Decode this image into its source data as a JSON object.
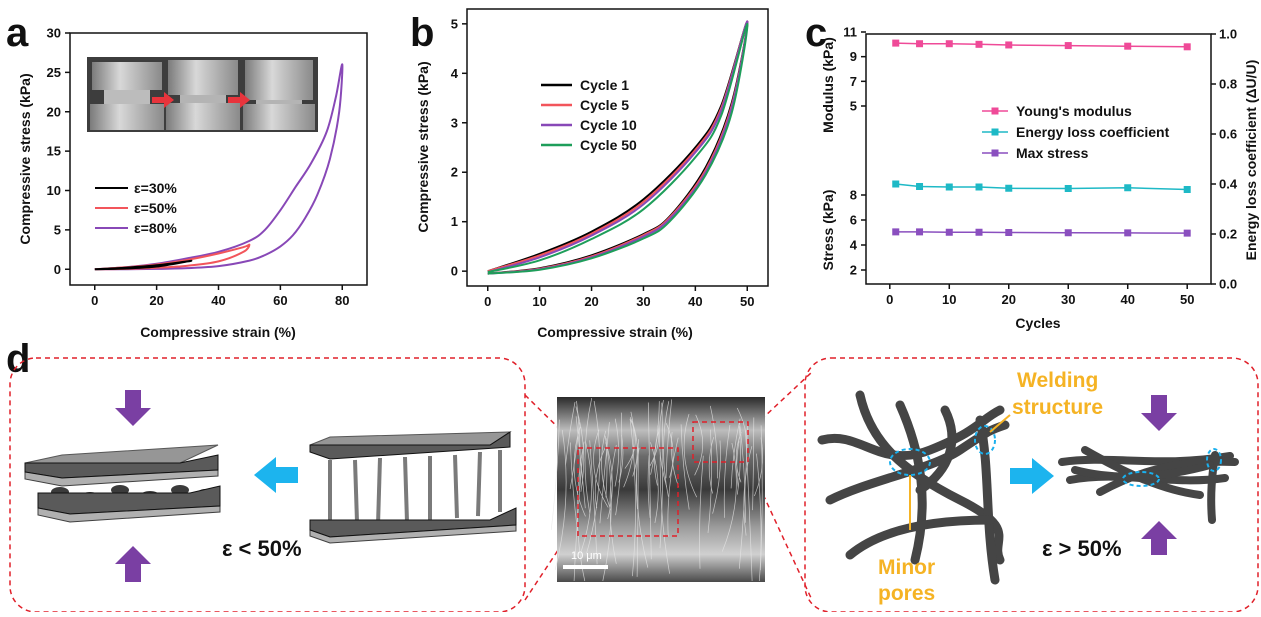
{
  "panels": {
    "a": "a",
    "b": "b",
    "c": "c",
    "d": "d"
  },
  "colors": {
    "black": "#000000",
    "red": "#f2555b",
    "purple": "#8848b7",
    "green": "#1e9e5a",
    "pink": "#ef4a98",
    "cyan": "#1eb9c6",
    "violet": "#8a4fbf",
    "arrow_purple": "#7a3fa3",
    "arrow_cyan": "#1cb4ee",
    "dashed_red": "#e0202a",
    "yellow": "#f5b324"
  },
  "chart_data": [
    {
      "panel": "a",
      "type": "line",
      "xlabel": "Compressive strain (%)",
      "ylabel": "Compressive stress (kPa)",
      "xlim": [
        -8,
        88
      ],
      "ylim": [
        -2,
        30
      ],
      "xticks": [
        0,
        20,
        40,
        60,
        80
      ],
      "yticks": [
        0,
        5,
        10,
        15,
        20,
        25,
        30
      ],
      "legend_position": "middle-left",
      "series": [
        {
          "name": "ε=30%",
          "color": "#000000",
          "x": [
            0,
            10,
            20,
            30,
            30,
            20,
            10,
            0
          ],
          "y": [
            0,
            0.2,
            0.5,
            1.0,
            1.0,
            0.35,
            0.1,
            0
          ]
        },
        {
          "name": "ε=50%",
          "color": "#f2555b",
          "x": [
            0,
            10,
            20,
            30,
            40,
            48,
            50,
            48,
            40,
            30,
            20,
            10,
            0
          ],
          "y": [
            0,
            0.25,
            0.6,
            1.2,
            2.0,
            2.8,
            3.1,
            2.2,
            1.0,
            0.45,
            0.2,
            0.05,
            0
          ]
        },
        {
          "name": "ε=80%",
          "color": "#8848b7",
          "x": [
            0,
            10,
            20,
            30,
            40,
            50,
            55,
            60,
            65,
            70,
            75,
            78,
            80,
            79,
            76,
            72,
            68,
            64,
            60,
            55,
            50,
            40,
            30,
            20,
            10,
            0
          ],
          "y": [
            0,
            0.25,
            0.7,
            1.4,
            2.2,
            3.6,
            5.0,
            7.5,
            10.5,
            13.5,
            17.5,
            22.0,
            26.0,
            20.0,
            14.0,
            9.5,
            6.5,
            4.3,
            2.9,
            1.8,
            1.1,
            0.4,
            0.15,
            0.05,
            0,
            0
          ]
        }
      ]
    },
    {
      "panel": "b",
      "type": "line",
      "xlabel": "Compressive strain (%)",
      "ylabel": "Compressive stress (kPa)",
      "xlim": [
        -4,
        54
      ],
      "ylim": [
        -0.3,
        5.3
      ],
      "xticks": [
        0,
        10,
        20,
        30,
        40,
        50
      ],
      "yticks": [
        0,
        1,
        2,
        3,
        4,
        5
      ],
      "legend_position": "top-left",
      "series": [
        {
          "name": "Cycle 1",
          "color": "#000000",
          "x": [
            0,
            10,
            20,
            30,
            40,
            45,
            50,
            47,
            42,
            35,
            30,
            20,
            10,
            0
          ],
          "y": [
            0,
            0.35,
            0.8,
            1.45,
            2.5,
            3.35,
            5.05,
            3.4,
            2.1,
            1.1,
            0.75,
            0.32,
            0.06,
            -0.05
          ]
        },
        {
          "name": "Cycle 5",
          "color": "#f2555b",
          "x": [
            0,
            10,
            20,
            30,
            40,
            45,
            50,
            47,
            42,
            35,
            30,
            20,
            10,
            0
          ],
          "y": [
            0,
            0.32,
            0.76,
            1.4,
            2.45,
            3.3,
            5.05,
            3.35,
            2.05,
            1.08,
            0.73,
            0.3,
            0.05,
            -0.05
          ]
        },
        {
          "name": "Cycle 10",
          "color": "#8848b7",
          "x": [
            0,
            10,
            20,
            30,
            40,
            45,
            50,
            47,
            42,
            35,
            30,
            20,
            10,
            0
          ],
          "y": [
            -0.02,
            0.28,
            0.72,
            1.35,
            2.4,
            3.25,
            5.05,
            3.3,
            2.0,
            1.05,
            0.7,
            0.28,
            0.04,
            -0.05
          ]
        },
        {
          "name": "Cycle 50",
          "color": "#1e9e5a",
          "x": [
            0,
            10,
            20,
            30,
            40,
            45,
            50,
            47,
            42,
            35,
            30,
            20,
            10,
            0
          ],
          "y": [
            -0.02,
            0.22,
            0.65,
            1.25,
            2.3,
            3.15,
            5.0,
            3.2,
            1.95,
            1.0,
            0.66,
            0.26,
            0.03,
            -0.05
          ]
        }
      ]
    },
    {
      "panel": "c",
      "type": "line",
      "xlabel": "Cycles",
      "ylabel_top": "Modulus (kPa)",
      "ylabel_bottom": "Stress (kPa)",
      "ylabel_right": "Energy loss coefficient (ΔU/U)",
      "xlim": [
        -4,
        54
      ],
      "xticks": [
        0,
        10,
        20,
        30,
        40,
        50
      ],
      "yticks_top": [
        5,
        7,
        9,
        11
      ],
      "yticks_bottom": [
        2,
        4,
        6,
        8
      ],
      "yticks_right": [
        "0.0",
        "0.2",
        "0.4",
        "0.6",
        "0.8",
        "1.0"
      ],
      "legend_position": "center",
      "x": [
        1,
        5,
        10,
        15,
        20,
        30,
        40,
        50
      ],
      "series": [
        {
          "name": "Young's modulus",
          "axis": "top",
          "color": "#ef4a98",
          "y": [
            10.1,
            10.05,
            10.05,
            10.0,
            9.95,
            9.9,
            9.85,
            9.8
          ]
        },
        {
          "name": "Energy loss coefficient",
          "axis": "right",
          "color": "#1eb9c6",
          "y": [
            0.4,
            0.39,
            0.388,
            0.388,
            0.383,
            0.382,
            0.385,
            0.378
          ]
        },
        {
          "name": "Max stress",
          "axis": "bottom",
          "color": "#8a4fbf",
          "y": [
            5.05,
            5.05,
            5.02,
            5.02,
            5.0,
            4.98,
            4.97,
            4.95
          ]
        }
      ]
    }
  ],
  "panel_d": {
    "left_label": "ε < 50%",
    "right_label": "ε > 50%",
    "scale_bar": "10 μm",
    "welding_line1": "Welding",
    "welding_line2": "structure",
    "minor_line1": "Minor",
    "minor_line2": "pores"
  }
}
